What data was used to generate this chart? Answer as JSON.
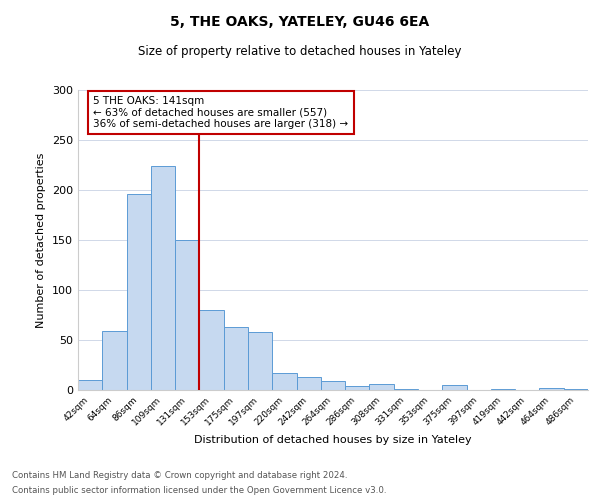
{
  "title": "5, THE OAKS, YATELEY, GU46 6EA",
  "subtitle": "Size of property relative to detached houses in Yateley",
  "xlabel": "Distribution of detached houses by size in Yateley",
  "ylabel": "Number of detached properties",
  "bar_labels": [
    "42sqm",
    "64sqm",
    "86sqm",
    "109sqm",
    "131sqm",
    "153sqm",
    "175sqm",
    "197sqm",
    "220sqm",
    "242sqm",
    "264sqm",
    "286sqm",
    "308sqm",
    "331sqm",
    "353sqm",
    "375sqm",
    "397sqm",
    "419sqm",
    "442sqm",
    "464sqm",
    "486sqm"
  ],
  "bar_values": [
    10,
    59,
    196,
    224,
    150,
    80,
    63,
    58,
    17,
    13,
    9,
    4,
    6,
    1,
    0,
    5,
    0,
    1,
    0,
    2,
    1
  ],
  "bar_color": "#c6d9f0",
  "bar_edgecolor": "#5b9bd5",
  "vline_x": 4.5,
  "vline_color": "#c00000",
  "annotation_title": "5 THE OAKS: 141sqm",
  "annotation_line1": "← 63% of detached houses are smaller (557)",
  "annotation_line2": "36% of semi-detached houses are larger (318) →",
  "annotation_box_color": "#c00000",
  "footnote1": "Contains HM Land Registry data © Crown copyright and database right 2024.",
  "footnote2": "Contains public sector information licensed under the Open Government Licence v3.0.",
  "ylim": [
    0,
    300
  ],
  "yticks": [
    0,
    50,
    100,
    150,
    200,
    250,
    300
  ],
  "background_color": "#ffffff",
  "grid_color": "#d0d8e8"
}
